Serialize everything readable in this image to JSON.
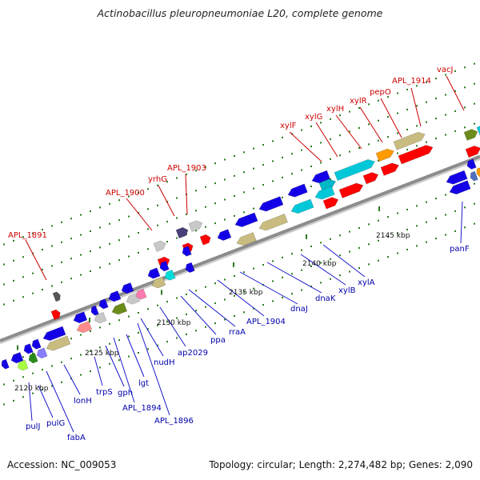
{
  "title": "Actinobacillus pleuropneumoniae L20, complete genome",
  "footer": {
    "accession": "Accession: NC_009053",
    "topology": "Topology: circular; Length: 2,274,482 bp; Genes: 2,090"
  },
  "colors": {
    "forward_label": "#cc0000",
    "reverse_label": "#0000aa",
    "backbone": "#8c8c8c",
    "tick": "#2a7a1e"
  },
  "ticks": [
    "2120 kbp",
    "2125 kbp",
    "2130 kbp",
    "2135 kbp",
    "2140 kbp",
    "2145 kbp"
  ],
  "forward_genes": [
    "APL_1891",
    "APL_1900",
    "yrhG",
    "APL_1903",
    "xylF",
    "xylG",
    "xylH",
    "xylR",
    "pepO",
    "APL_1914",
    "vacJ"
  ],
  "reverse_genes": [
    "pulJ",
    "pulG",
    "fabA",
    "lonH",
    "trpS",
    "gph",
    "APL_1894",
    "lgt",
    "APL_1896",
    "nudH",
    "ap2029",
    "ppa",
    "rraA",
    "APL_1904",
    "dnaJ",
    "dnaK",
    "xylB",
    "xylA",
    "panF"
  ]
}
